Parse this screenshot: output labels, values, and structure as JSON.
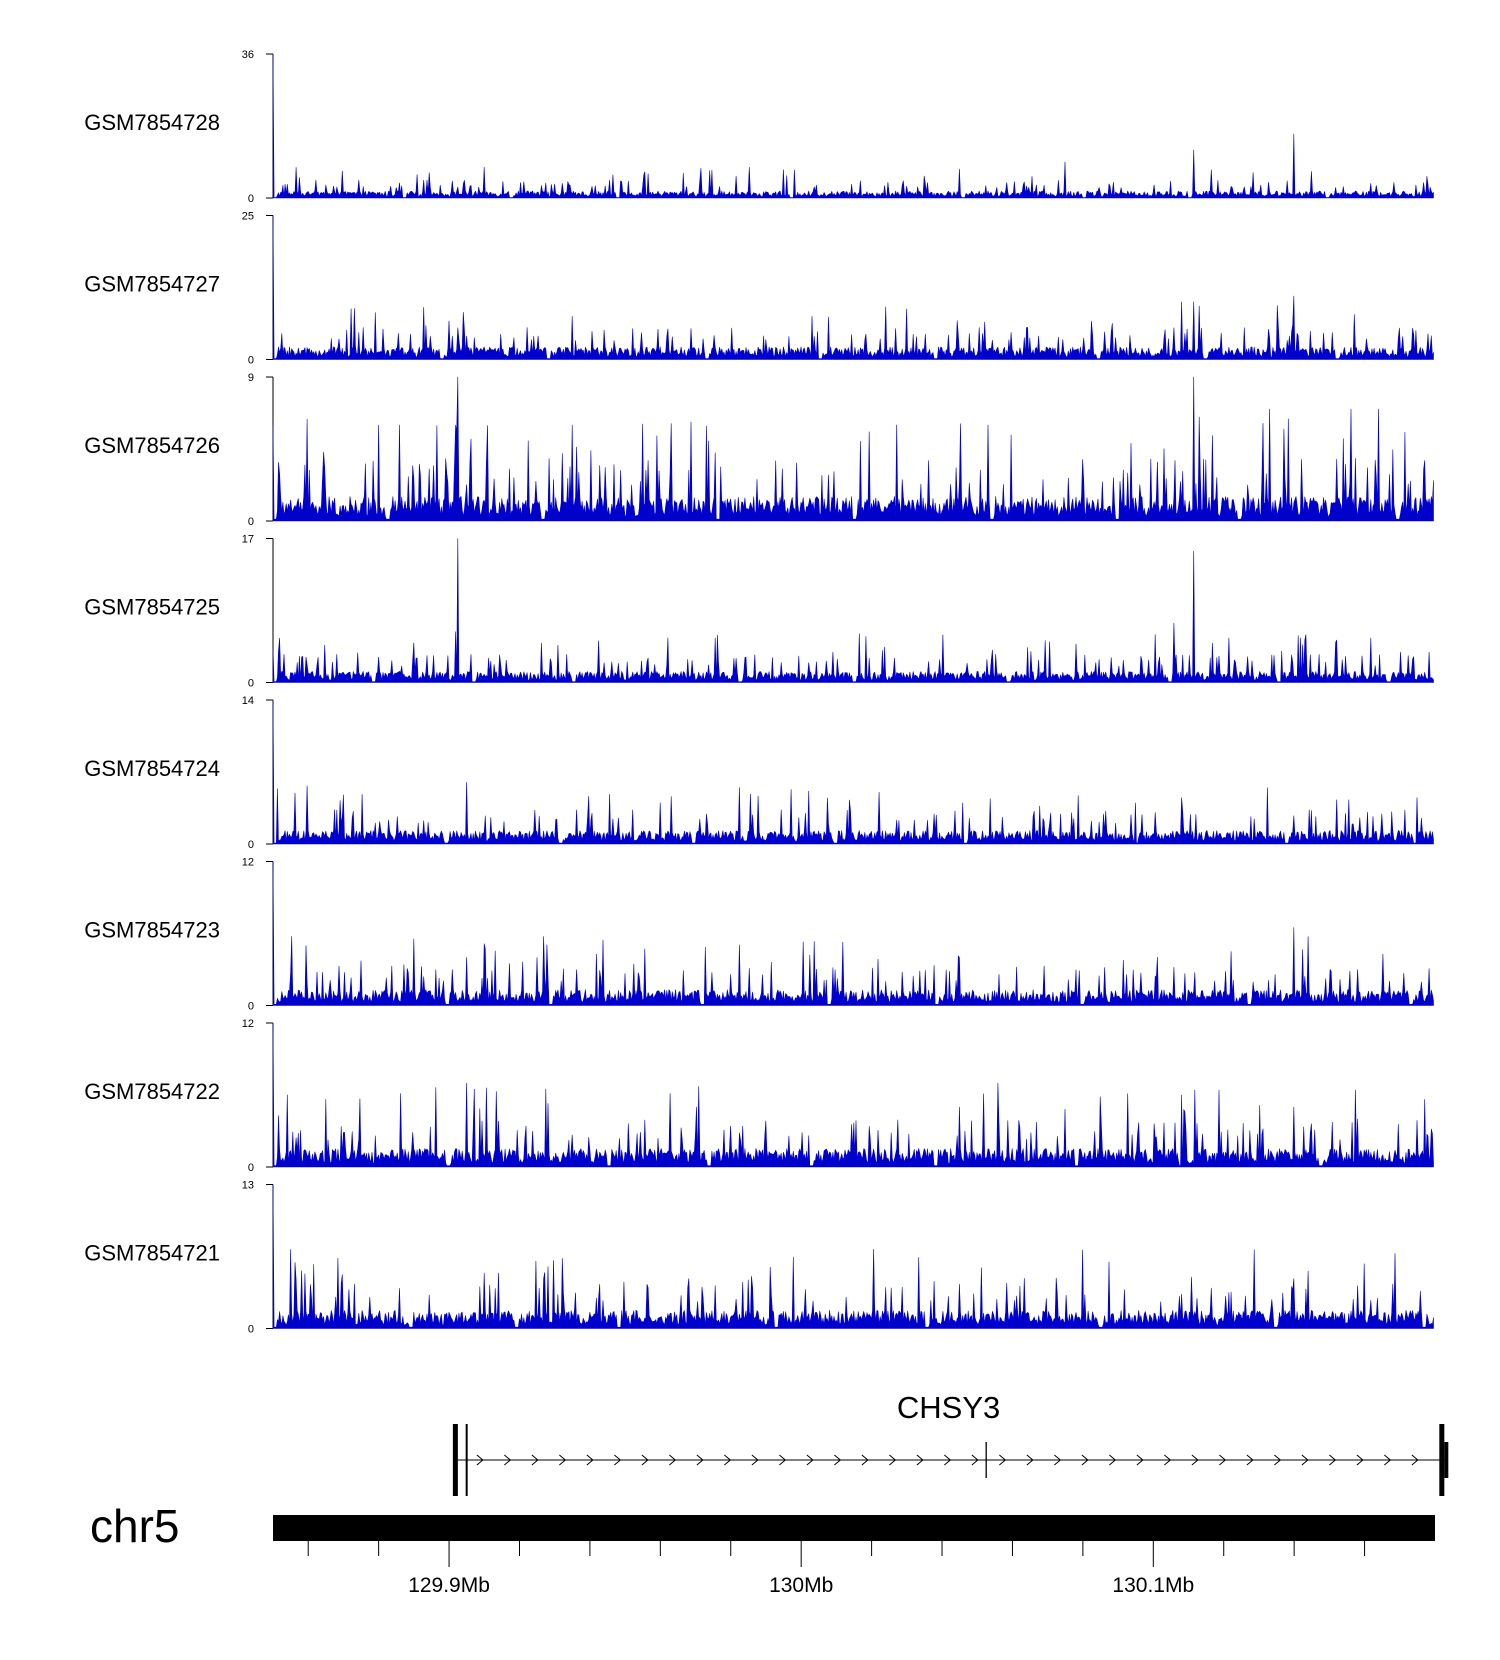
{
  "chart_data": {
    "type": "area",
    "title": "",
    "x_region": {
      "chromosome": "chr5",
      "start_mb": 129.85,
      "end_mb": 130.18
    },
    "series_color": "#0000cc",
    "tracks": [
      {
        "name": "GSM7854728",
        "ymax": 36,
        "ymin": 0,
        "baseline": 1.6,
        "first_bin": 36,
        "peaks": [
          {
            "x": 129.998,
            "y": 7
          },
          {
            "x": 130.035,
            "y": 5.5
          },
          {
            "x": 130.075,
            "y": 9
          },
          {
            "x": 130.1115,
            "y": 12
          },
          {
            "x": 130.14,
            "y": 16
          }
        ]
      },
      {
        "name": "GSM7854727",
        "ymax": 25,
        "ymin": 0,
        "baseline": 2.0,
        "first_bin": 25,
        "peaks": [
          {
            "x": 129.935,
            "y": 7.5
          },
          {
            "x": 130.003,
            "y": 7.5
          },
          {
            "x": 130.052,
            "y": 6.5
          },
          {
            "x": 130.108,
            "y": 10
          },
          {
            "x": 130.1115,
            "y": 10
          },
          {
            "x": 130.14,
            "y": 11
          }
        ]
      },
      {
        "name": "GSM7854726",
        "ymax": 9,
        "ymin": 0,
        "baseline": 1.4,
        "first_bin": 6,
        "peaks": [
          {
            "x": 129.88,
            "y": 6
          },
          {
            "x": 129.886,
            "y": 6
          },
          {
            "x": 129.902,
            "y": 6
          },
          {
            "x": 129.9025,
            "y": 9
          },
          {
            "x": 129.935,
            "y": 6
          },
          {
            "x": 130.027,
            "y": 6
          },
          {
            "x": 130.053,
            "y": 6
          },
          {
            "x": 130.1115,
            "y": 9
          },
          {
            "x": 130.113,
            "y": 6.5
          },
          {
            "x": 130.133,
            "y": 7
          },
          {
            "x": 130.156,
            "y": 7
          },
          {
            "x": 130.164,
            "y": 7
          }
        ]
      },
      {
        "name": "GSM7854725",
        "ymax": 17,
        "ymin": 0,
        "baseline": 1.2,
        "first_bin": 4,
        "peaks": [
          {
            "x": 129.858,
            "y": 3
          },
          {
            "x": 129.88,
            "y": 3
          },
          {
            "x": 129.902,
            "y": 6
          },
          {
            "x": 129.9025,
            "y": 17
          },
          {
            "x": 130.106,
            "y": 7
          },
          {
            "x": 130.1115,
            "y": 15.5
          },
          {
            "x": 130.143,
            "y": 5
          },
          {
            "x": 130.152,
            "y": 5
          }
        ]
      },
      {
        "name": "GSM7854724",
        "ymax": 14,
        "ymin": 0,
        "baseline": 1.2,
        "first_bin": 14,
        "peaks": [
          {
            "x": 129.905,
            "y": 6
          },
          {
            "x": 129.96,
            "y": 4
          },
          {
            "x": 130.046,
            "y": 4
          },
          {
            "x": 130.095,
            "y": 4
          },
          {
            "x": 130.108,
            "y": 4.5
          },
          {
            "x": 130.175,
            "y": 4.5
          }
        ]
      },
      {
        "name": "GSM7854723",
        "ymax": 12,
        "ymin": 0,
        "baseline": 1.2,
        "first_bin": 12,
        "peaks": [
          {
            "x": 129.905,
            "y": 4
          },
          {
            "x": 129.925,
            "y": 4
          },
          {
            "x": 130.045,
            "y": 4
          },
          {
            "x": 130.122,
            "y": 4.5
          },
          {
            "x": 130.14,
            "y": 6.5
          }
        ]
      },
      {
        "name": "GSM7854722",
        "ymax": 12,
        "ymin": 0,
        "baseline": 1.4,
        "first_bin": 12,
        "peaks": [
          {
            "x": 129.905,
            "y": 7
          },
          {
            "x": 129.9275,
            "y": 6.5
          },
          {
            "x": 130.045,
            "y": 5
          },
          {
            "x": 130.056,
            "y": 7
          },
          {
            "x": 130.108,
            "y": 6
          },
          {
            "x": 130.14,
            "y": 5
          }
        ]
      },
      {
        "name": "GSM7854721",
        "ymax": 13,
        "ymin": 0,
        "baseline": 1.5,
        "first_bin": 13,
        "peaks": [
          {
            "x": 129.91,
            "y": 5
          },
          {
            "x": 129.914,
            "y": 5
          },
          {
            "x": 129.927,
            "y": 4.5
          },
          {
            "x": 129.968,
            "y": 4.5
          },
          {
            "x": 130.045,
            "y": 4
          },
          {
            "x": 130.14,
            "y": 4.5
          }
        ]
      }
    ],
    "gene": {
      "name": "CHSY3",
      "strand": "+",
      "start_mb": 129.9025,
      "end_mb": 130.1835,
      "exons_mb": [
        129.9025,
        129.905,
        130.0525,
        130.1835
      ]
    },
    "axis": {
      "chromosome_label": "chr5",
      "tick_labels": [
        "129.9Mb",
        "130Mb",
        "130.1Mb"
      ],
      "labeled_ticks_mb": [
        129.9,
        130.0,
        130.1
      ],
      "minor_tick_step_mb": 0.02
    }
  }
}
